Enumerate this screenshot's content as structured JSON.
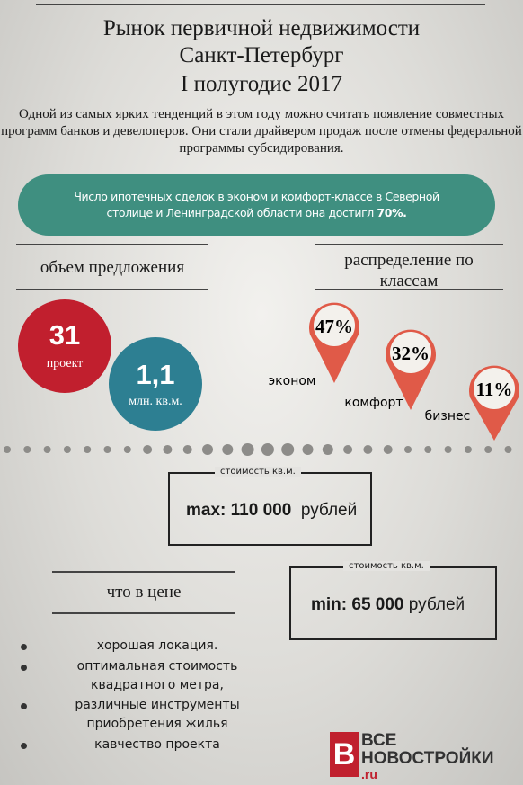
{
  "header": {
    "title_lines": [
      "Рынок первичной недвижимости",
      "Санкт-Петербург",
      "I полугодие 2017"
    ]
  },
  "intro": "Одной из самых ярких тенденций в этом году можно считать появление совместных программ банков и девелоперов. Они стали драйвером продаж после отмены федеральной программы субсидирования.",
  "banner": {
    "text": "Число ипотечных сделок в эконом и комфорт-классе  в Северной столице и Ленинградской области она достигл",
    "highlight": "70%."
  },
  "supply": {
    "title": "объем предложения",
    "items": [
      {
        "value": "31",
        "unit": "проект"
      },
      {
        "value": "1,1",
        "unit": "млн. кв.м."
      }
    ]
  },
  "classes": {
    "title_lines": [
      "распределение по",
      "классам"
    ],
    "items": [
      {
        "label": "эконом",
        "value": "47%"
      },
      {
        "label": "комфорт",
        "value": "32%"
      },
      {
        "label": "бизнес",
        "value": "11%"
      }
    ]
  },
  "prices": [
    {
      "caption": "стоимость кв.м.",
      "label": "max:",
      "amount": "110 000",
      "unit": "рублей"
    },
    {
      "caption": "стоимость кв.м.",
      "label": "min:",
      "amount": "65 000",
      "unit": "рублей"
    }
  ],
  "included": {
    "title": "что в цене",
    "items": [
      "хорошая локация.",
      "оптимальная стоимость",
      "квадратного метра,",
      "различные инструменты",
      "приобретения жилья",
      "кавчество проекта"
    ]
  },
  "logo": {
    "letter": "В",
    "line1": "ВСЕ",
    "line2": "НОВОСТРОЙКИ",
    "suffix": ".ru"
  }
}
